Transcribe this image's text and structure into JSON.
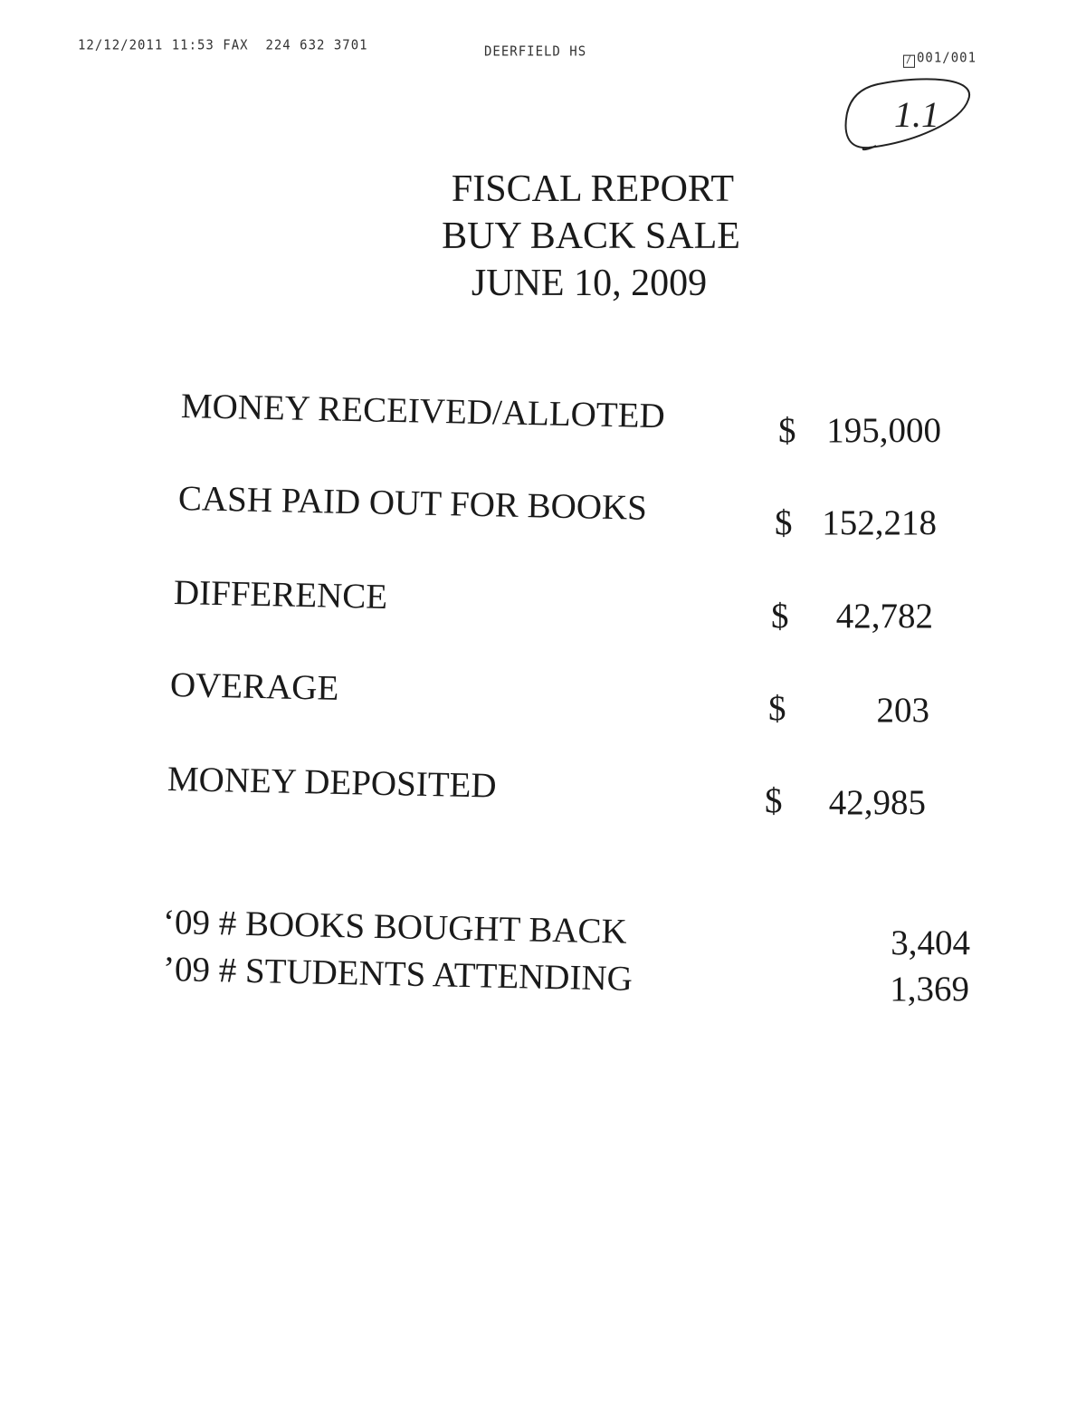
{
  "fax_header": {
    "datetime_fax": "12/12/2011 11:53 FAX",
    "phone": "224 632 3701",
    "sender": "DEERFIELD HS",
    "page": "001/001",
    "page_icon": "fax-icon"
  },
  "annotation": "1.1",
  "title": [
    "FISCAL REPORT",
    "BUY BACK SALE",
    "JUNE 10, 2009"
  ],
  "rows": [
    {
      "label": "MONEY RECEIVED/ALLOTED",
      "currency": "$",
      "value": "195,000"
    },
    {
      "label": "CASH PAID OUT FOR BOOKS",
      "currency": "$",
      "value": "152,218"
    },
    {
      "label": "DIFFERENCE",
      "currency": "$",
      "value": "42,782"
    },
    {
      "label": "OVERAGE",
      "currency": "$",
      "value": "203"
    },
    {
      "label": "MONEY DEPOSITED",
      "currency": "$",
      "value": "42,985"
    }
  ],
  "stats": [
    {
      "label": "‘09 # BOOKS BOUGHT BACK",
      "value": "3,404"
    },
    {
      "label": "’09 # STUDENTS ATTENDING",
      "value": "1,369"
    }
  ]
}
